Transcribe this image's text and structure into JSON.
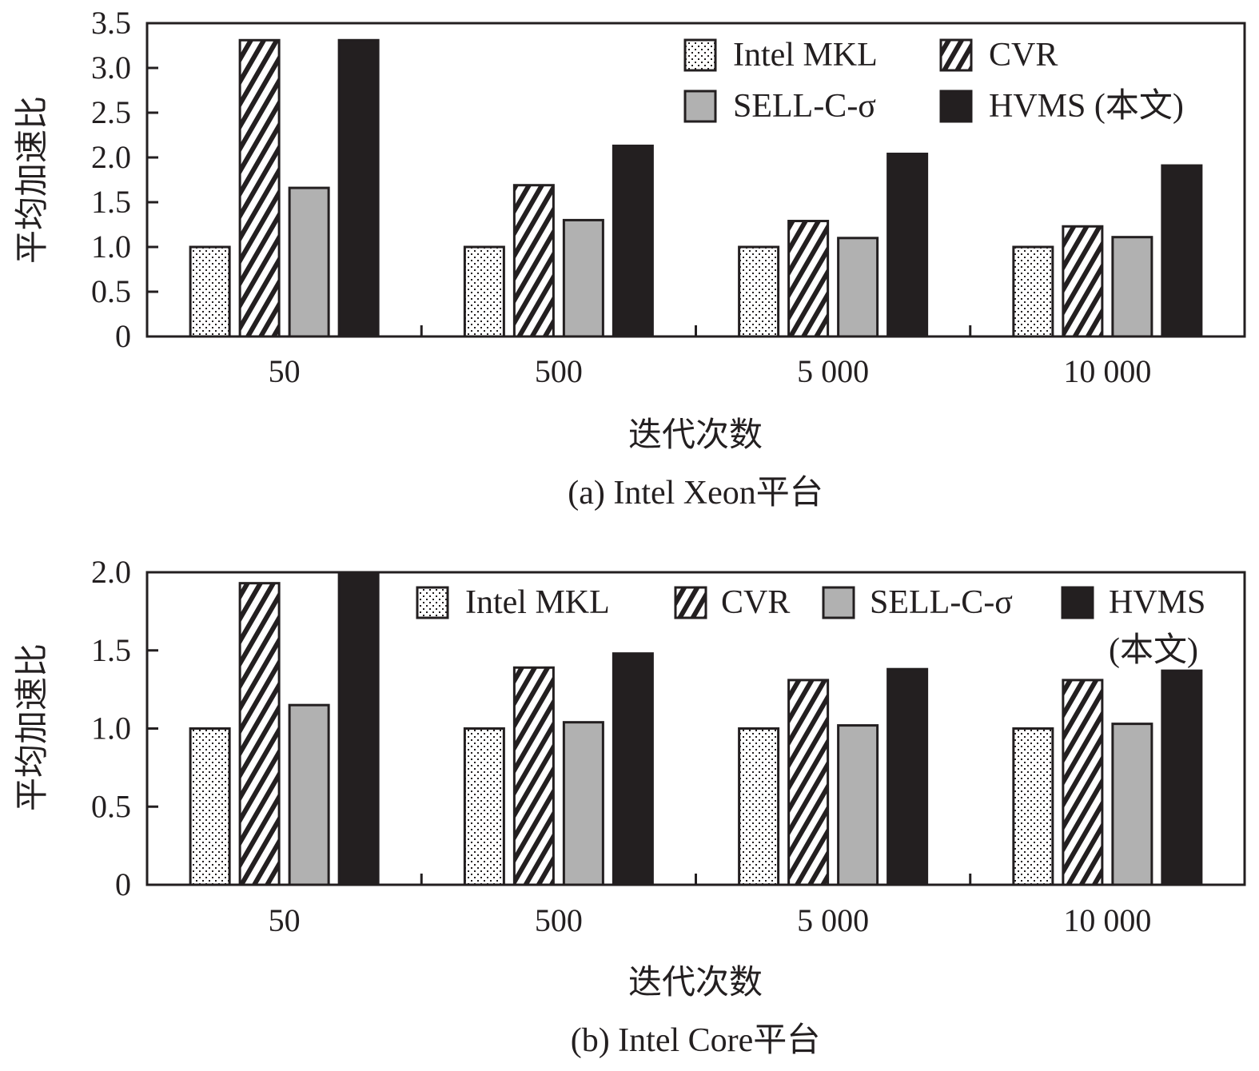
{
  "chart_data": [
    {
      "type": "bar",
      "caption": "(a)  Intel Xeon平台",
      "xlabel": "迭代次数",
      "ylabel": "平均加速比",
      "ylim": [
        0,
        3.5
      ],
      "yticks": [
        "0",
        "0.5",
        "1.0",
        "1.5",
        "2.0",
        "2.5",
        "3.0",
        "3.5"
      ],
      "categories": [
        "50",
        "500",
        "5 000",
        "10 000"
      ],
      "legend_position": "top-right",
      "series": [
        {
          "name": "Intel MKL",
          "pattern": "dots",
          "values": [
            1.0,
            1.0,
            1.0,
            1.0
          ]
        },
        {
          "name": "CVR",
          "pattern": "hatch",
          "values": [
            3.31,
            1.69,
            1.29,
            1.23
          ]
        },
        {
          "name": "SELL-C-σ",
          "pattern": "gray",
          "values": [
            1.66,
            1.3,
            1.1,
            1.11
          ]
        },
        {
          "name": "HVMS (本文)",
          "pattern": "black",
          "values": [
            3.31,
            2.13,
            2.04,
            1.91
          ]
        }
      ]
    },
    {
      "type": "bar",
      "caption": "(b)  Intel Core平台",
      "xlabel": "迭代次数",
      "ylabel": "平均加速比",
      "ylim": [
        0,
        2.0
      ],
      "yticks": [
        "0",
        "0.5",
        "1.0",
        "1.5",
        "2.0"
      ],
      "categories": [
        "50",
        "500",
        "5 000",
        "10 000"
      ],
      "legend_position": "top-right",
      "series": [
        {
          "name": "Intel MKL",
          "pattern": "dots",
          "values": [
            1.0,
            1.0,
            1.0,
            1.0
          ]
        },
        {
          "name": "CVR",
          "pattern": "hatch",
          "values": [
            1.93,
            1.39,
            1.31,
            1.31
          ]
        },
        {
          "name": "SELL-C-σ",
          "pattern": "gray",
          "values": [
            1.15,
            1.04,
            1.02,
            1.03
          ]
        },
        {
          "name": "HVMS",
          "name_line2": "(本文)",
          "pattern": "black",
          "values": [
            2.0,
            1.48,
            1.38,
            1.37
          ]
        }
      ]
    }
  ],
  "colors": {
    "ink": "#231f20",
    "gray": "#b1b1b1",
    "black": "#231f20"
  }
}
